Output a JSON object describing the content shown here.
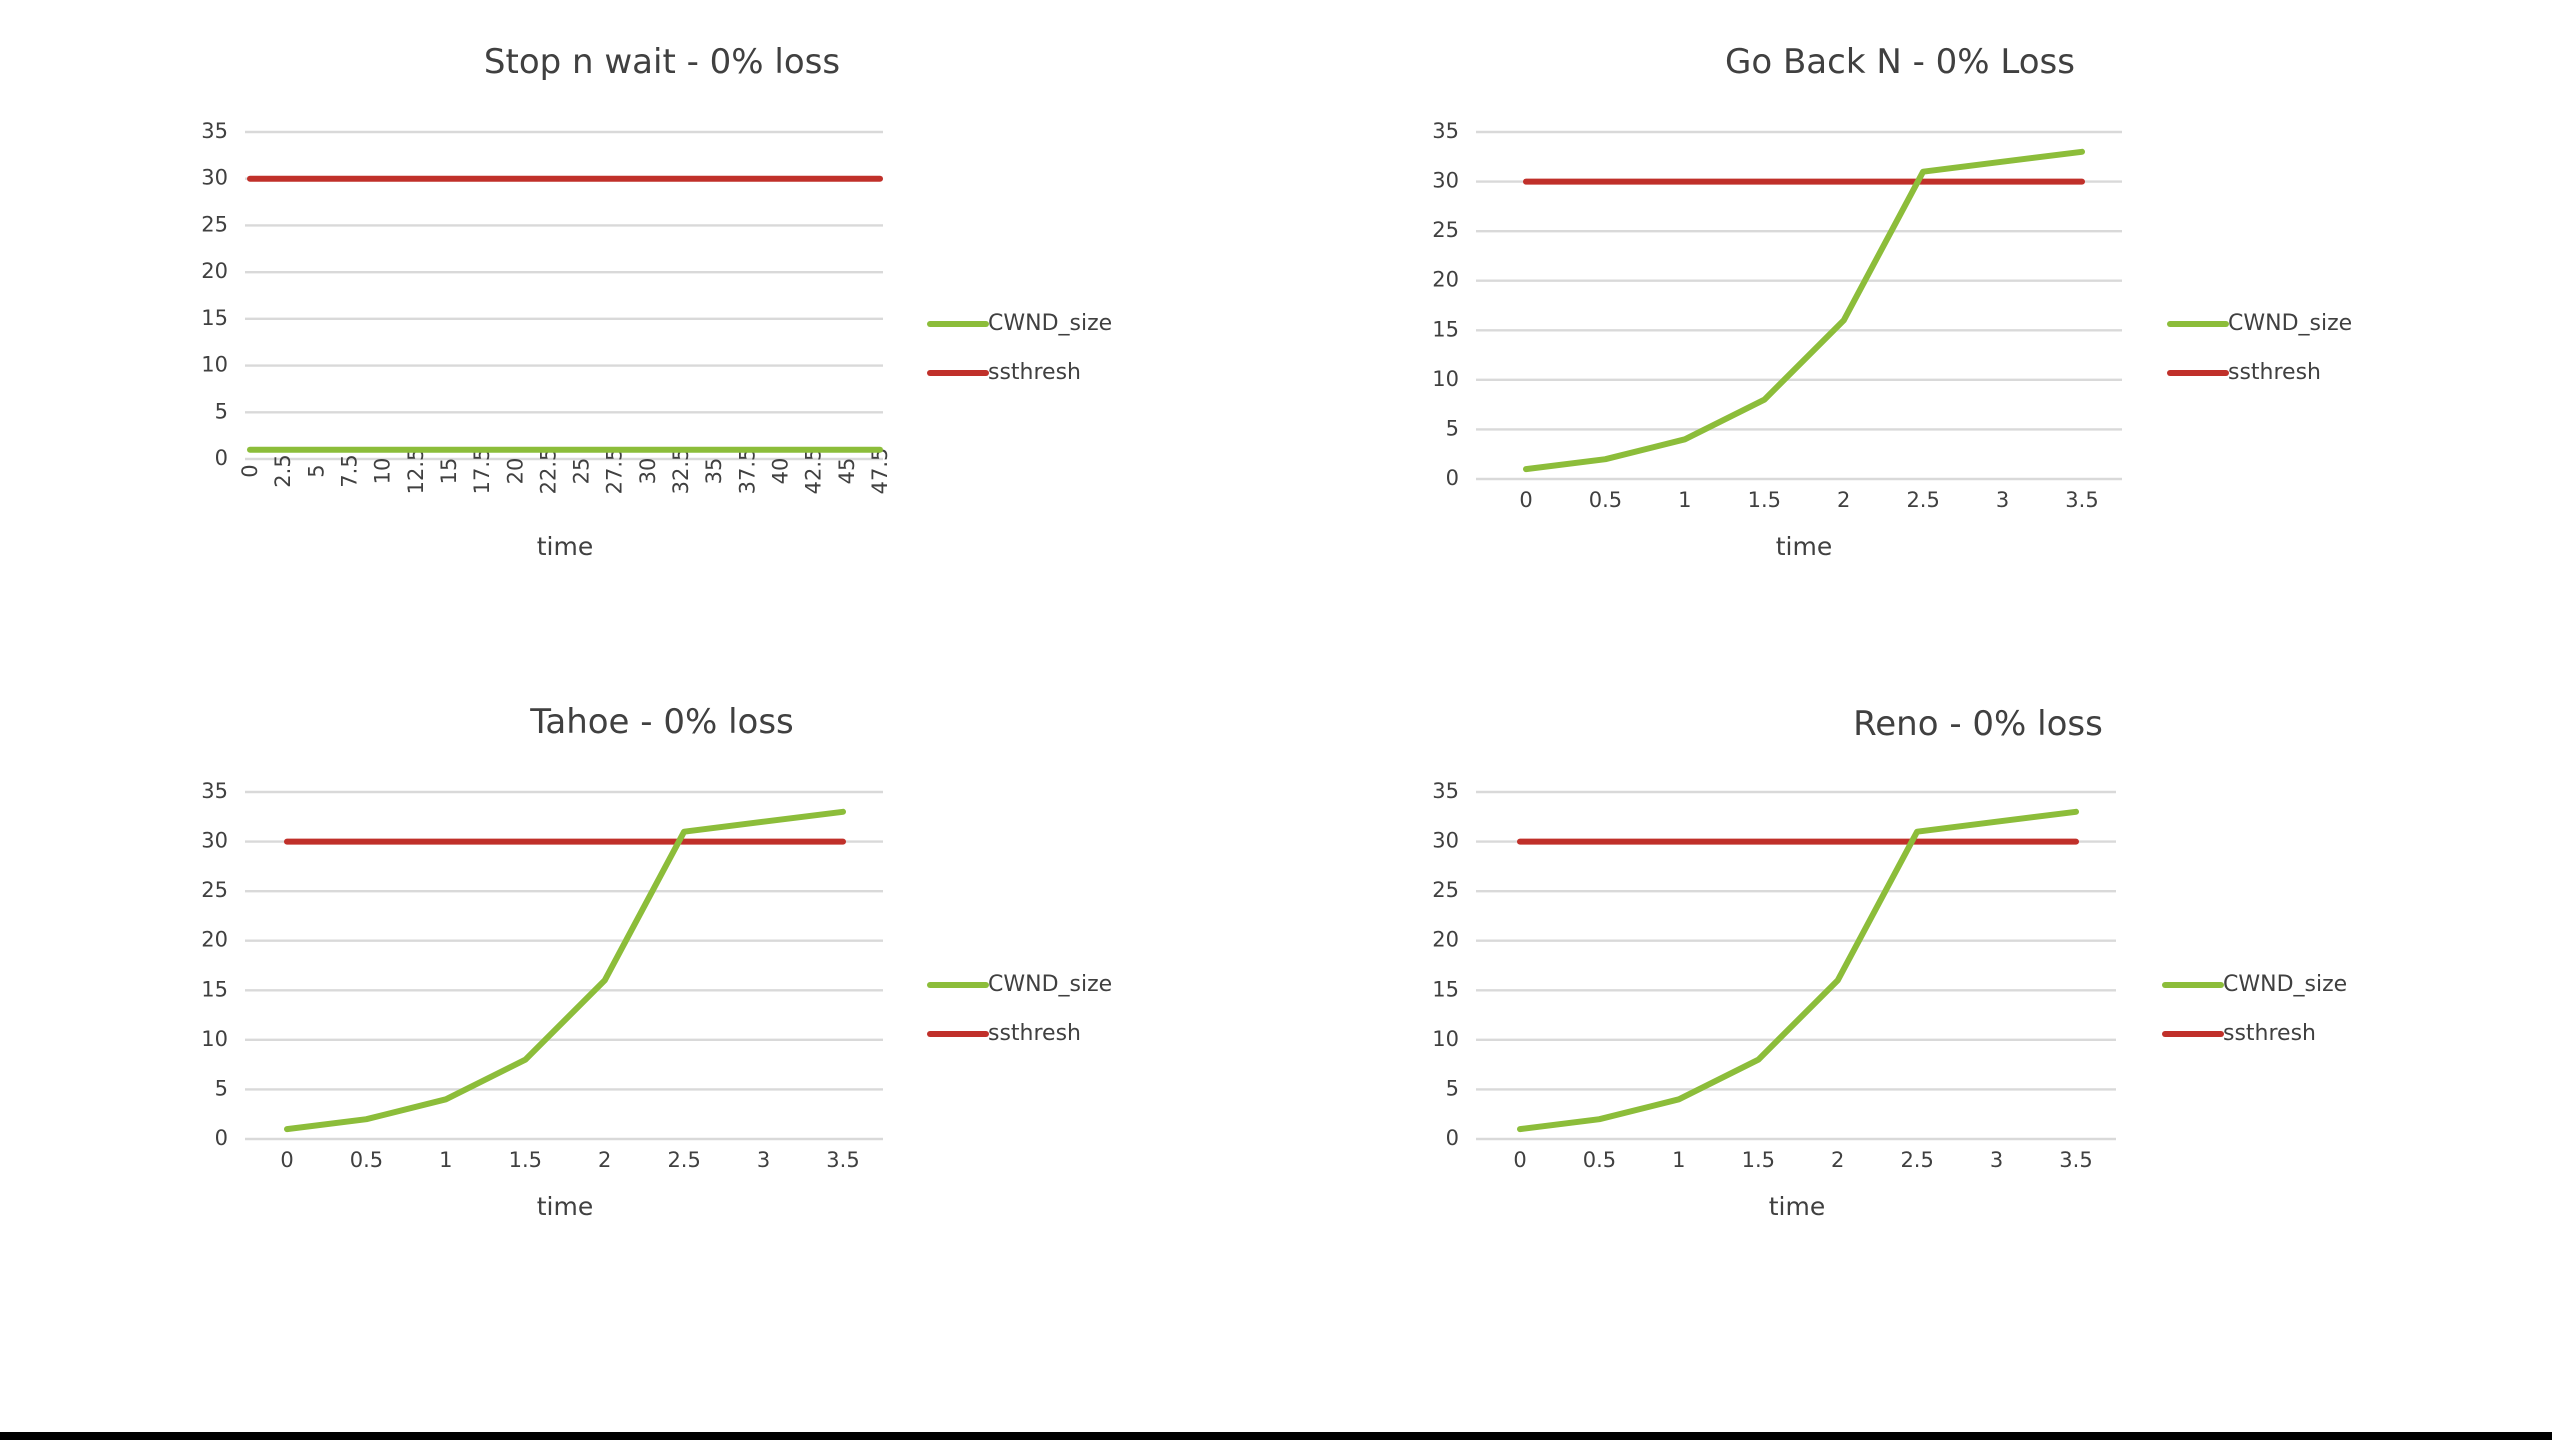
{
  "colors": {
    "CWND_size": "#8cbd3a",
    "ssthresh": "#c0302a"
  },
  "chart_data": [
    {
      "type": "line",
      "title": "Stop n wait - 0% loss",
      "xlabel": "time",
      "ylabel": "",
      "ylim": [
        0,
        35
      ],
      "ytick_labels": [
        "0",
        "5",
        "10",
        "15",
        "20",
        "25",
        "30",
        "35"
      ],
      "categories": [
        "0",
        "2.5",
        "5",
        "7.5",
        "10",
        "12.5",
        "15",
        "17.5",
        "20",
        "22.5",
        "25",
        "27.5",
        "30",
        "32.5",
        "35",
        "37.5",
        "40",
        "42.5",
        "45",
        "47.5"
      ],
      "x_rotated": true,
      "grid": true,
      "legend": "right",
      "series": [
        {
          "name": "CWND_size",
          "values": [
            1,
            1,
            1,
            1,
            1,
            1,
            1,
            1,
            1,
            1,
            1,
            1,
            1,
            1,
            1,
            1,
            1,
            1,
            1,
            1
          ]
        },
        {
          "name": "ssthresh",
          "values": [
            30,
            30,
            30,
            30,
            30,
            30,
            30,
            30,
            30,
            30,
            30,
            30,
            30,
            30,
            30,
            30,
            30,
            30,
            30,
            30
          ]
        }
      ]
    },
    {
      "type": "line",
      "title": "Go Back N - 0% Loss",
      "xlabel": "time",
      "ylabel": "",
      "ylim": [
        0,
        35
      ],
      "ytick_labels": [
        "0",
        "5",
        "10",
        "15",
        "20",
        "25",
        "30",
        "35"
      ],
      "categories": [
        "0",
        "0.5",
        "1",
        "1.5",
        "2",
        "2.5",
        "3",
        "3.5"
      ],
      "x_rotated": false,
      "grid": true,
      "legend": "right",
      "series": [
        {
          "name": "CWND_size",
          "values": [
            1,
            2,
            4,
            8,
            16,
            31,
            32,
            33
          ]
        },
        {
          "name": "ssthresh",
          "values": [
            30,
            30,
            30,
            30,
            30,
            30,
            30,
            30
          ]
        }
      ]
    },
    {
      "type": "line",
      "title": "Tahoe - 0% loss",
      "xlabel": "time",
      "ylabel": "",
      "ylim": [
        0,
        35
      ],
      "ytick_labels": [
        "0",
        "5",
        "10",
        "15",
        "20",
        "25",
        "30",
        "35"
      ],
      "categories": [
        "0",
        "0.5",
        "1",
        "1.5",
        "2",
        "2.5",
        "3",
        "3.5"
      ],
      "x_rotated": false,
      "grid": true,
      "legend": "right",
      "series": [
        {
          "name": "CWND_size",
          "values": [
            1,
            2,
            4,
            8,
            16,
            31,
            32,
            33
          ]
        },
        {
          "name": "ssthresh",
          "values": [
            30,
            30,
            30,
            30,
            30,
            30,
            30,
            30
          ]
        }
      ]
    },
    {
      "type": "line",
      "title": "Reno - 0% loss",
      "xlabel": "time",
      "ylabel": "",
      "ylim": [
        0,
        35
      ],
      "ytick_labels": [
        "0",
        "5",
        "10",
        "15",
        "20",
        "25",
        "30",
        "35"
      ],
      "categories": [
        "0",
        "0.5",
        "1",
        "1.5",
        "2",
        "2.5",
        "3",
        "3.5"
      ],
      "x_rotated": false,
      "grid": true,
      "legend": "right",
      "series": [
        {
          "name": "CWND_size",
          "values": [
            1,
            2,
            4,
            8,
            16,
            31,
            32,
            33
          ]
        },
        {
          "name": "ssthresh",
          "values": [
            30,
            30,
            30,
            30,
            30,
            30,
            30,
            30
          ]
        }
      ]
    }
  ]
}
